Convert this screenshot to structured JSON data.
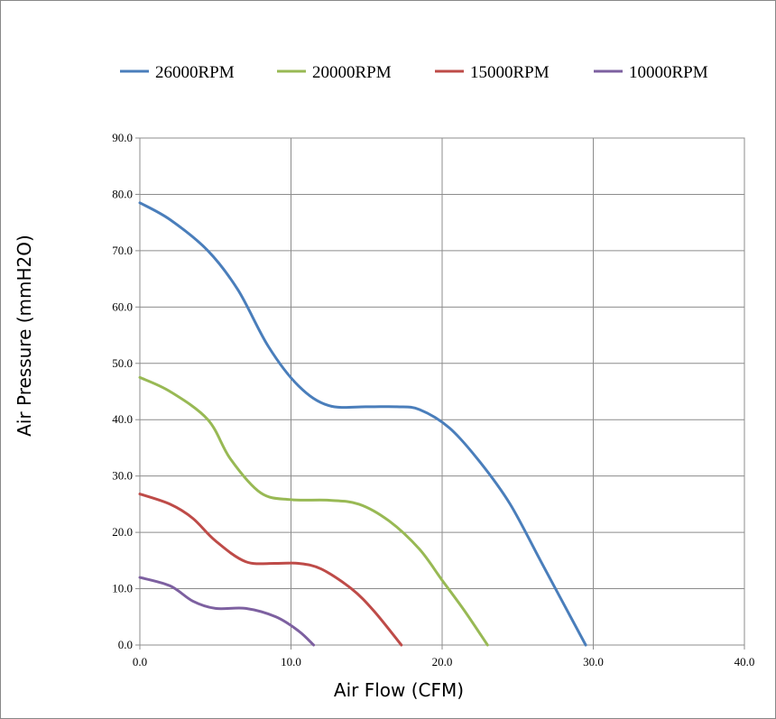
{
  "chart_data": {
    "type": "line",
    "title": "",
    "xlabel": "Air Flow (CFM)",
    "ylabel": "Air Pressure (mmH2O)",
    "xlim": [
      0,
      40
    ],
    "ylim": [
      0,
      90
    ],
    "x_ticks": [
      "0.0",
      "10.0",
      "20.0",
      "30.0",
      "40.0"
    ],
    "y_ticks": [
      "0.0",
      "10.0",
      "20.0",
      "30.0",
      "40.0",
      "50.0",
      "60.0",
      "70.0",
      "80.0",
      "90.0"
    ],
    "grid": true,
    "legend_position": "top",
    "series": [
      {
        "name": "26000RPM",
        "color": "#4a7ebb",
        "points": [
          [
            0,
            78.5
          ],
          [
            2,
            75.5
          ],
          [
            4.5,
            70
          ],
          [
            6.5,
            63
          ],
          [
            8.5,
            53
          ],
          [
            10.5,
            46
          ],
          [
            12.5,
            42.5
          ],
          [
            15,
            42.3
          ],
          [
            17,
            42.3
          ],
          [
            18.5,
            41.8
          ],
          [
            20.5,
            38.5
          ],
          [
            22.5,
            32.5
          ],
          [
            24.5,
            25
          ],
          [
            26.5,
            15
          ],
          [
            28,
            7.5
          ],
          [
            29.5,
            0
          ]
        ]
      },
      {
        "name": "20000RPM",
        "color": "#98b954",
        "points": [
          [
            0,
            47.5
          ],
          [
            2,
            45
          ],
          [
            4.5,
            40
          ],
          [
            6,
            33
          ],
          [
            8,
            27
          ],
          [
            10,
            25.8
          ],
          [
            12.5,
            25.7
          ],
          [
            14.5,
            25
          ],
          [
            16.5,
            22
          ],
          [
            18.5,
            17
          ],
          [
            20,
            11.5
          ],
          [
            21.5,
            6
          ],
          [
            23,
            0
          ]
        ]
      },
      {
        "name": "15000RPM",
        "color": "#be4b48",
        "points": [
          [
            0,
            26.8
          ],
          [
            2,
            25
          ],
          [
            3.5,
            22.5
          ],
          [
            5,
            18.5
          ],
          [
            7,
            14.8
          ],
          [
            9,
            14.5
          ],
          [
            10.5,
            14.5
          ],
          [
            12,
            13.5
          ],
          [
            14,
            10
          ],
          [
            15.5,
            6
          ],
          [
            17.3,
            0
          ]
        ]
      },
      {
        "name": "10000RPM",
        "color": "#7d60a0",
        "points": [
          [
            0,
            12
          ],
          [
            2,
            10.5
          ],
          [
            3.5,
            7.8
          ],
          [
            5,
            6.5
          ],
          [
            7,
            6.5
          ],
          [
            9,
            5
          ],
          [
            10.5,
            2.5
          ],
          [
            11.5,
            0
          ]
        ]
      }
    ]
  }
}
